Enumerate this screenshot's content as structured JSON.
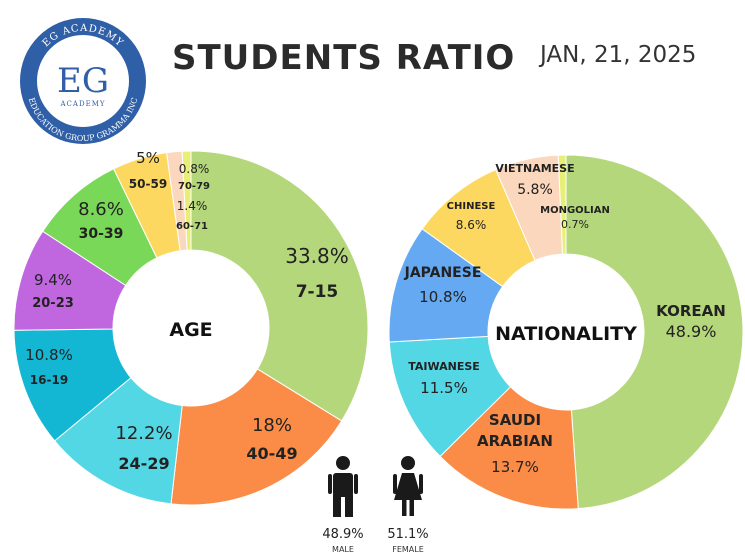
{
  "title": "STUDENTS RATIO",
  "date": "JAN, 21, 2025",
  "logo": {
    "monogram": "EG",
    "top_text": "EG ACADEMY",
    "sub_text": "ACADEMY",
    "ring_text": "EDUCATION GROUP GRAMMA INC",
    "color": "#2f5fa7"
  },
  "chart_data": [
    {
      "type": "pie",
      "center_label": "AGE",
      "slices": [
        {
          "label": "7-15",
          "value": 33.8,
          "pct_text": "33.8%",
          "color": "#b5d77b"
        },
        {
          "label": "40-49",
          "value": 18,
          "pct_text": "18%",
          "color": "#fb8c47"
        },
        {
          "label": "24-29",
          "value": 12.2,
          "pct_text": "12.2%",
          "color": "#54d7e4"
        },
        {
          "label": "16-19",
          "value": 10.8,
          "pct_text": "10.8%",
          "color": "#13b6d3"
        },
        {
          "label": "20-23",
          "value": 9.4,
          "pct_text": "9.4%",
          "color": "#c067e0"
        },
        {
          "label": "30-39",
          "value": 8.6,
          "pct_text": "8.6%",
          "color": "#7ad859"
        },
        {
          "label": "50-59",
          "value": 5,
          "pct_text": "5%",
          "color": "#fdd861"
        },
        {
          "label": "60-71",
          "value": 1.4,
          "pct_text": "1.4%",
          "color": "#fad7bd"
        },
        {
          "label": "70-79",
          "value": 0.8,
          "pct_text": "0.8%",
          "color": "#e8ef77"
        }
      ]
    },
    {
      "type": "pie",
      "center_label": "NATIONALITY",
      "slices": [
        {
          "label": "KOREAN",
          "value": 48.9,
          "pct_text": "48.9%",
          "color": "#b5d77b"
        },
        {
          "label": "SAUDI ARABIAN",
          "value": 13.7,
          "pct_text": "13.7%",
          "color": "#fb8c47"
        },
        {
          "label": "TAIWANESE",
          "value": 11.5,
          "pct_text": "11.5%",
          "color": "#54d7e4"
        },
        {
          "label": "JAPANESE",
          "value": 10.8,
          "pct_text": "10.8%",
          "color": "#65a9f2"
        },
        {
          "label": "CHINESE",
          "value": 8.6,
          "pct_text": "8.6%",
          "color": "#fdd861"
        },
        {
          "label": "VIETNAMESE",
          "value": 5.8,
          "pct_text": "5.8%",
          "color": "#fad7bd"
        },
        {
          "label": "MONGOLIAN",
          "value": 0.7,
          "pct_text": "0.7%",
          "color": "#e8ef77"
        }
      ]
    }
  ],
  "gender": [
    {
      "label": "MALE",
      "pct_text": "48.9%",
      "icon": "male-person-icon"
    },
    {
      "label": "FEMALE",
      "pct_text": "51.1%",
      "icon": "female-person-icon"
    }
  ]
}
